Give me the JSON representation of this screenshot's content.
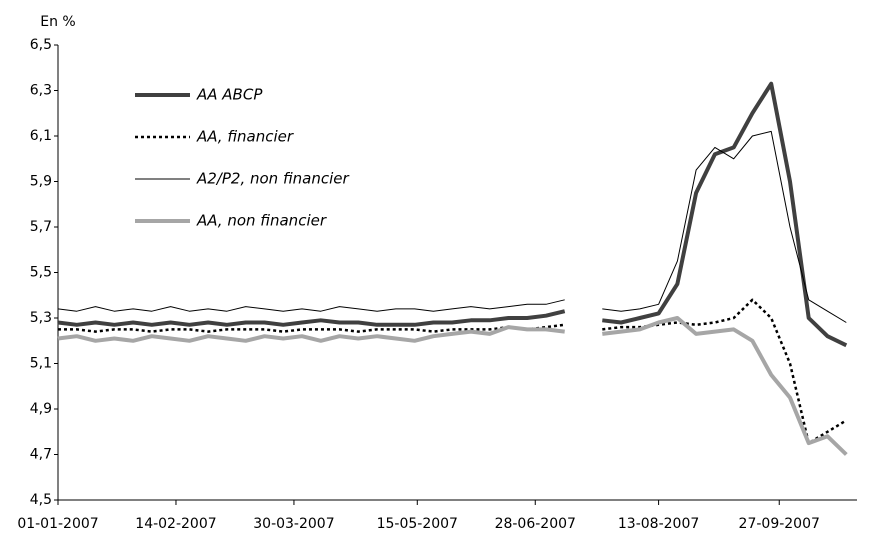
{
  "chart_data": {
    "type": "line",
    "y_unit_label": "En %",
    "x": [
      "01-01-2007",
      "08-01-2007",
      "15-01-2007",
      "22-01-2007",
      "29-01-2007",
      "05-02-2007",
      "12-02-2007",
      "19-02-2007",
      "26-02-2007",
      "05-03-2007",
      "12-03-2007",
      "19-03-2007",
      "26-03-2007",
      "02-04-2007",
      "09-04-2007",
      "16-04-2007",
      "23-04-2007",
      "30-04-2007",
      "07-05-2007",
      "14-05-2007",
      "21-05-2007",
      "28-05-2007",
      "04-06-2007",
      "11-06-2007",
      "18-06-2007",
      "25-06-2007",
      "02-07-2007",
      "09-07-2007",
      "16-07-2007",
      "23-07-2007",
      "30-07-2007",
      "06-08-2007",
      "13-08-2007",
      "20-08-2007",
      "27-08-2007",
      "03-09-2007",
      "10-09-2007",
      "17-09-2007",
      "24-09-2007",
      "01-10-2007",
      "08-10-2007",
      "15-10-2007",
      "22-10-2007"
    ],
    "xlim": [
      "01-01-2007",
      "26-10-2007"
    ],
    "xticks": [
      "01-01-2007",
      "14-02-2007",
      "30-03-2007",
      "15-05-2007",
      "28-06-2007",
      "13-08-2007",
      "27-09-2007"
    ],
    "ylim": [
      4.5,
      6.5
    ],
    "yticks": [
      {
        "value": 4.5,
        "label": "4,5"
      },
      {
        "value": 4.7,
        "label": "4,7"
      },
      {
        "value": 4.9,
        "label": "4,9"
      },
      {
        "value": 5.1,
        "label": "5,1"
      },
      {
        "value": 5.3,
        "label": "5,3"
      },
      {
        "value": 5.5,
        "label": "5,5"
      },
      {
        "value": 5.7,
        "label": "5,7"
      },
      {
        "value": 5.9,
        "label": "5,9"
      },
      {
        "value": 6.1,
        "label": "6,1"
      },
      {
        "value": 6.3,
        "label": "6,3"
      },
      {
        "value": 6.5,
        "label": "6,5"
      }
    ],
    "grid": false,
    "legend": "upper-left",
    "series": [
      {
        "name": "AA ABCP",
        "color": "#404040",
        "width": 4,
        "dash": "solid",
        "values": [
          5.28,
          5.27,
          5.28,
          5.27,
          5.28,
          5.27,
          5.28,
          5.27,
          5.28,
          5.27,
          5.28,
          5.28,
          5.27,
          5.28,
          5.29,
          5.28,
          5.28,
          5.27,
          5.27,
          5.27,
          5.28,
          5.28,
          5.29,
          5.29,
          5.3,
          5.3,
          5.31,
          5.33,
          null,
          5.29,
          5.28,
          5.3,
          5.32,
          5.45,
          5.85,
          6.02,
          6.05,
          6.2,
          6.33,
          5.9,
          5.3,
          5.22,
          5.18
        ]
      },
      {
        "name": "AA, financier",
        "color": "#000000",
        "width": 2.5,
        "dash": "dotted",
        "values": [
          5.25,
          5.25,
          5.24,
          5.25,
          5.25,
          5.24,
          5.25,
          5.25,
          5.24,
          5.25,
          5.25,
          5.25,
          5.24,
          5.25,
          5.25,
          5.25,
          5.24,
          5.25,
          5.25,
          5.25,
          5.24,
          5.25,
          5.25,
          5.25,
          5.26,
          5.25,
          5.26,
          5.27,
          null,
          5.25,
          5.26,
          5.26,
          5.27,
          5.28,
          5.27,
          5.28,
          5.3,
          5.38,
          5.3,
          5.1,
          4.75,
          4.8,
          4.85
        ]
      },
      {
        "name": "A2/P2, non financier",
        "color": "#000000",
        "width": 1,
        "dash": "solid",
        "values": [
          5.34,
          5.33,
          5.35,
          5.33,
          5.34,
          5.33,
          5.35,
          5.33,
          5.34,
          5.33,
          5.35,
          5.34,
          5.33,
          5.34,
          5.33,
          5.35,
          5.34,
          5.33,
          5.34,
          5.34,
          5.33,
          5.34,
          5.35,
          5.34,
          5.35,
          5.36,
          5.36,
          5.38,
          null,
          5.34,
          5.33,
          5.34,
          5.36,
          5.55,
          5.95,
          6.05,
          6.0,
          6.1,
          6.12,
          5.7,
          5.38,
          5.33,
          5.28
        ]
      },
      {
        "name": "AA, non financier",
        "color": "#a6a6a6",
        "width": 4,
        "dash": "solid",
        "values": [
          5.21,
          5.22,
          5.2,
          5.21,
          5.2,
          5.22,
          5.21,
          5.2,
          5.22,
          5.21,
          5.2,
          5.22,
          5.21,
          5.22,
          5.2,
          5.22,
          5.21,
          5.22,
          5.21,
          5.2,
          5.22,
          5.23,
          5.24,
          5.23,
          5.26,
          5.25,
          5.25,
          5.24,
          null,
          5.23,
          5.24,
          5.25,
          5.28,
          5.3,
          5.23,
          5.24,
          5.25,
          5.2,
          5.05,
          4.95,
          4.75,
          4.78,
          4.7
        ]
      }
    ]
  }
}
